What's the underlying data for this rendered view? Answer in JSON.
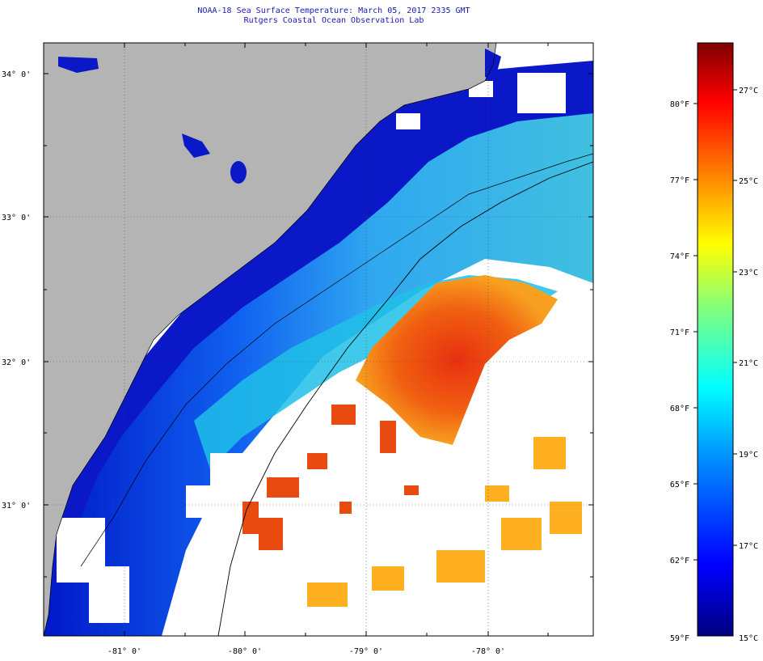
{
  "title": {
    "line1": "NOAA-18 Sea Surface Temperature:  March 05, 2017 2335 GMT",
    "line2": "Rutgers Coastal Ocean Observation Lab"
  },
  "latitude_labels": [
    "34° 0'",
    "33° 0'",
    "32° 0'",
    "31° 0'"
  ],
  "longitude_labels": [
    "-81° 0'",
    "-80° 0'",
    "-79° 0'",
    "-78° 0'"
  ],
  "colorbar": {
    "fahrenheit_labels": [
      "80°F",
      "77°F",
      "74°F",
      "71°F",
      "68°F",
      "65°F",
      "62°F",
      "59°F"
    ],
    "celsius_labels": [
      "27°C",
      "25°C",
      "23°C",
      "21°C",
      "19°C",
      "17°C",
      "15°C"
    ],
    "gradient_colors": [
      "#00007f",
      "#0000ff",
      "#007fff",
      "#00ffff",
      "#7fff7f",
      "#ffff00",
      "#ff7f00",
      "#ff0000",
      "#7f0000"
    ]
  },
  "colors": {
    "land": "#b4b4b4",
    "cloud": "#ffffff",
    "nearshore": "#0a1fd0",
    "shelf": "#3a8cf0",
    "midshelf": "#1ec8e8",
    "gulfstream": "#f06010",
    "warm": "#ffb020"
  }
}
